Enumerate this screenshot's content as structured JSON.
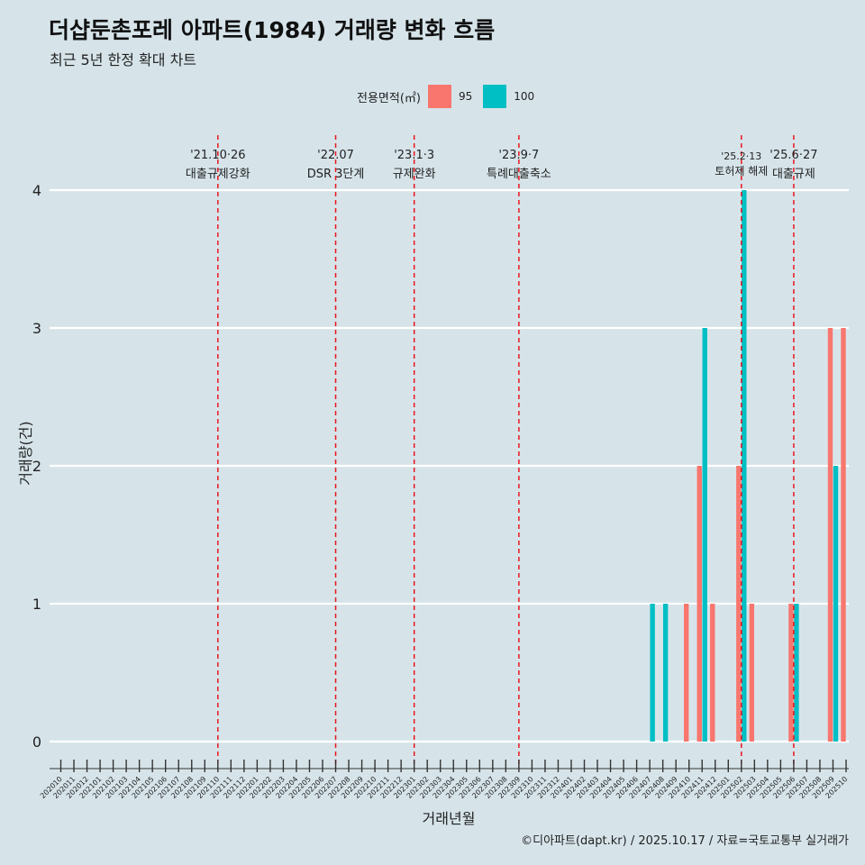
{
  "title": "더샵둔촌포레 아파트(1984) 거래량 변화 흐름",
  "subtitle": "최근 5년 한정 확대 차트",
  "caption": "©디아파트(dapt.kr) / 2025.10.17 / 자료=국토교통부 실거래가",
  "legend": {
    "title": "전용면적(㎡)",
    "items": [
      {
        "label": "95",
        "color": "#f8766d"
      },
      {
        "label": "100",
        "color": "#00bfc4"
      }
    ]
  },
  "chart_data": {
    "type": "bar",
    "xlabel": "거래년월",
    "ylabel": "거래량(건)",
    "ylim": [
      0,
      4
    ],
    "yticks": [
      "0",
      "1",
      "2",
      "3",
      "4"
    ],
    "categories": [
      "202010",
      "202011",
      "202012",
      "202101",
      "202102",
      "202103",
      "202104",
      "202105",
      "202106",
      "202107",
      "202108",
      "202109",
      "202110",
      "202111",
      "202112",
      "202201",
      "202202",
      "202203",
      "202204",
      "202205",
      "202206",
      "202207",
      "202208",
      "202209",
      "202210",
      "202211",
      "202212",
      "202301",
      "202302",
      "202303",
      "202304",
      "202305",
      "202306",
      "202307",
      "202308",
      "202309",
      "202310",
      "202311",
      "202312",
      "202401",
      "202402",
      "202403",
      "202404",
      "202405",
      "202406",
      "202407",
      "202408",
      "202409",
      "202410",
      "202411",
      "202412",
      "202501",
      "202502",
      "202503",
      "202504",
      "202505",
      "202506",
      "202507",
      "202508",
      "202509",
      "202510"
    ],
    "series": [
      {
        "name": "95",
        "color": "#f8766d",
        "values": {
          "202410": 1,
          "202411": 2,
          "202412": 1,
          "202502": 2,
          "202503": 1,
          "202506": 1,
          "202509": 3,
          "202510": 3
        }
      },
      {
        "name": "100",
        "color": "#00bfc4",
        "values": {
          "202407": 1,
          "202408": 1,
          "202411": 3,
          "202502": 4,
          "202506": 1,
          "202509": 2
        }
      }
    ],
    "annotations": [
      {
        "month": "202110",
        "date": "'21.10·26",
        "label": "대출규제강화"
      },
      {
        "month": "202207",
        "date": "'22.07",
        "label": "DSR 3단계"
      },
      {
        "month": "202301",
        "date": "'23.1·3",
        "label": "규제완화"
      },
      {
        "month": "202309",
        "date": "'23.9·7",
        "label": "특례대출축소"
      },
      {
        "month": "202502",
        "date": "'25.2·13",
        "label": "토허제 해제"
      },
      {
        "month": "202506",
        "date": "'25.6·27",
        "label": "대출규제"
      }
    ]
  }
}
